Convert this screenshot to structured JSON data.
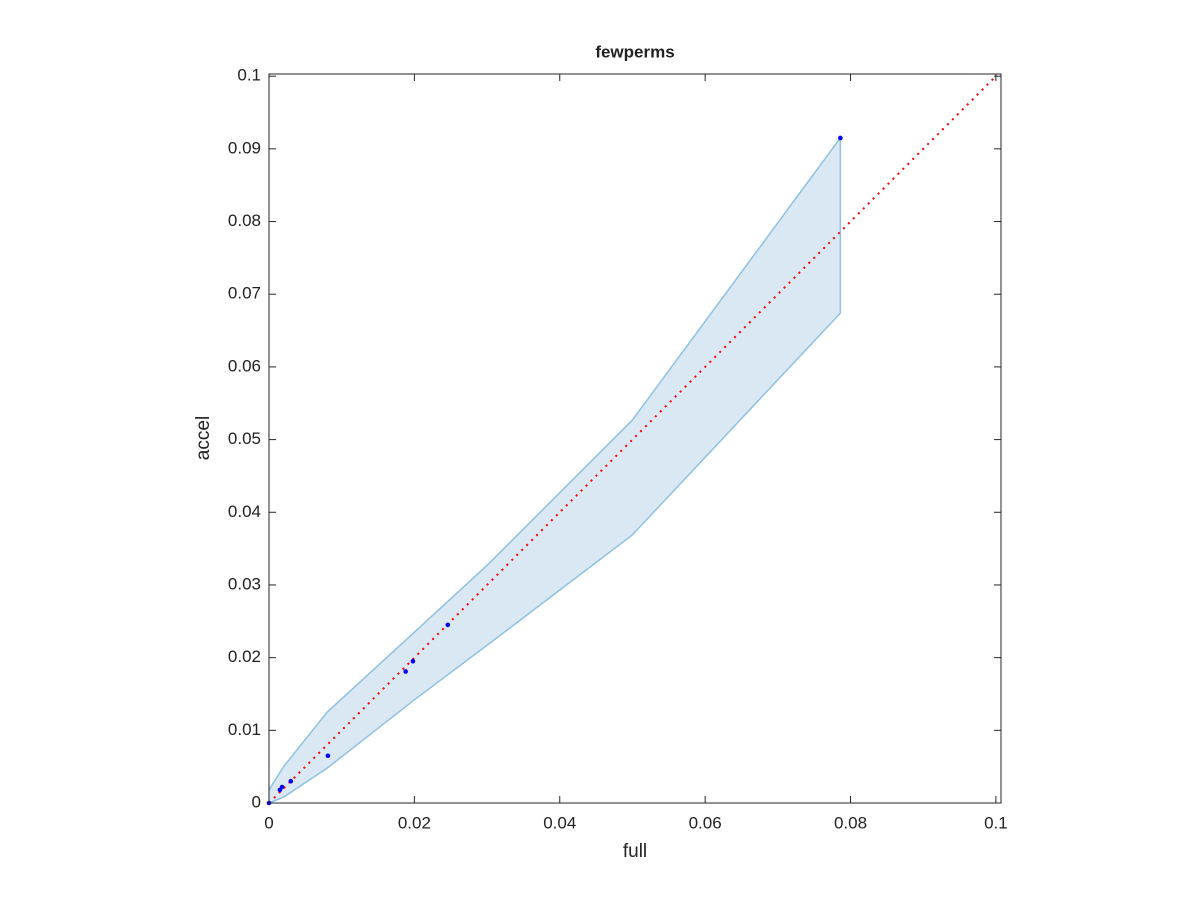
{
  "chart_data": {
    "type": "scatter",
    "title": "fewperms",
    "x_label": "full",
    "y_label": "accel",
    "xlim": [
      0,
      0.1007
    ],
    "ylim": [
      0,
      0.1003
    ],
    "xticks": [
      0,
      0.02,
      0.04,
      0.06,
      0.08,
      0.1
    ],
    "yticks": [
      0,
      0.01,
      0.02,
      0.03,
      0.04,
      0.05,
      0.06,
      0.07,
      0.08,
      0.09,
      0.1
    ],
    "band": {
      "color": "#dae8f4",
      "edge_color": "#8fc1e3",
      "x": [
        0,
        0.002,
        0.008,
        0.02,
        0.03,
        0.05,
        0.0786
      ],
      "upper": [
        0.0018,
        0.005,
        0.0125,
        0.0235,
        0.0327,
        0.0527,
        0.0915
      ],
      "lower": [
        0,
        0.0008,
        0.0048,
        0.0142,
        0.0217,
        0.0369,
        0.0674
      ]
    },
    "reference": {
      "color": "#ff0000",
      "x": [
        0,
        0.1
      ],
      "y": [
        0,
        0.1
      ]
    },
    "series": [
      {
        "color": "#0000ff",
        "x": [
          0,
          0.0015,
          0.0018,
          0.003,
          0.0081,
          0.0188,
          0.0198,
          0.0246,
          0.0786
        ],
        "values": [
          0,
          0.0018,
          0.0022,
          0.003,
          0.0065,
          0.0181,
          0.0195,
          0.0245,
          0.0915
        ]
      }
    ]
  }
}
